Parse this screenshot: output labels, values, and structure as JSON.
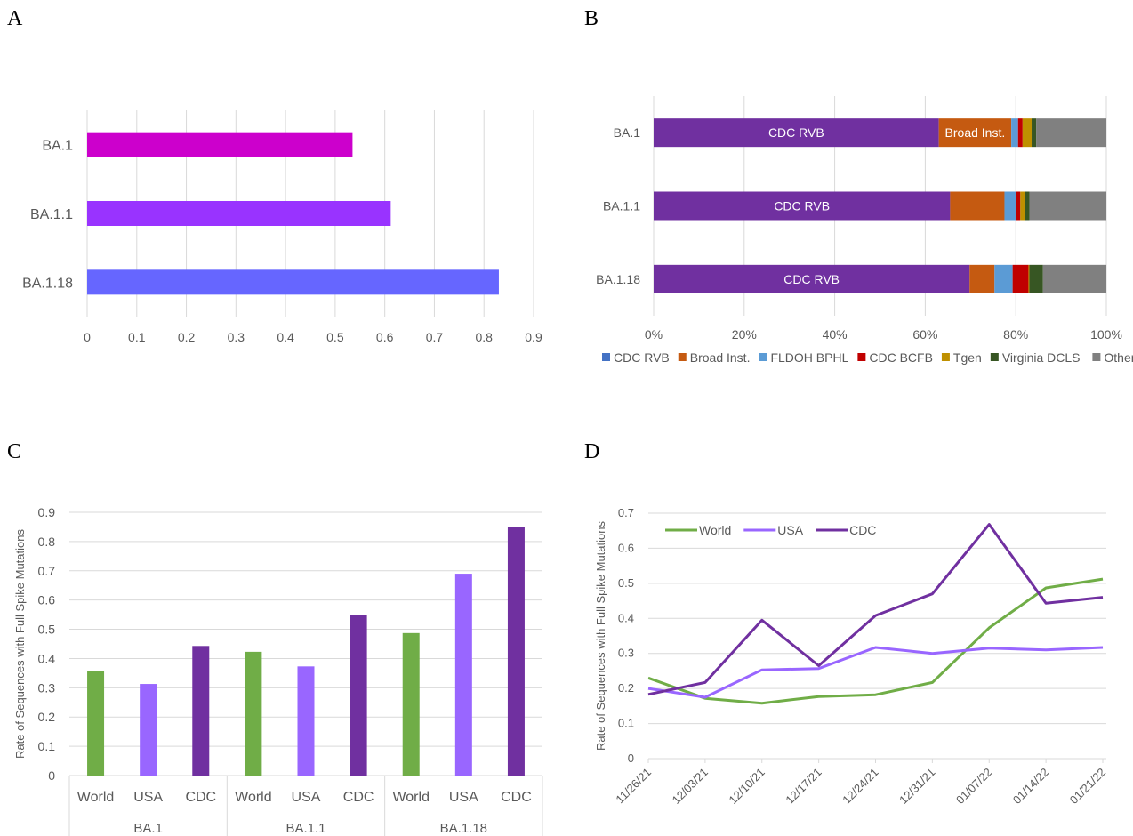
{
  "panel_labels": [
    "A",
    "B",
    "C",
    "D"
  ],
  "chart_data": [
    {
      "panel": "A",
      "type": "bar",
      "orientation": "horizontal",
      "categories": [
        "BA.1",
        "BA.1.1",
        "BA.1.18"
      ],
      "values": [
        0.535,
        0.612,
        0.83
      ],
      "colors": [
        "#cc00cc",
        "#9933ff",
        "#6666ff"
      ],
      "xlim": [
        0,
        0.9
      ],
      "xticks": [
        "0",
        "0.1",
        "0.2",
        "0.3",
        "0.4",
        "0.5",
        "0.6",
        "0.7",
        "0.8",
        "0.9"
      ],
      "grid": true
    },
    {
      "panel": "B",
      "type": "bar",
      "stacked": "percent",
      "orientation": "horizontal",
      "categories": [
        "BA.1",
        "BA.1.1",
        "BA.1.18"
      ],
      "series": [
        {
          "name": "CDC RVB",
          "color": "#7030a0",
          "legend_color": "#4472c4",
          "values": [
            63,
            65.5,
            69.8
          ]
        },
        {
          "name": "Broad Inst.",
          "color": "#c55a11",
          "values": [
            16,
            12,
            5.5
          ]
        },
        {
          "name": "FLDOH BPHL",
          "color": "#5b9bd5",
          "values": [
            1.5,
            2.5,
            4
          ]
        },
        {
          "name": "CDC BCFB",
          "color": "#c00000",
          "values": [
            1,
            1,
            3.5
          ]
        },
        {
          "name": "Tgen",
          "color": "#bf9000",
          "values": [
            2,
            1,
            0.2
          ]
        },
        {
          "name": "Virginia  DCLS",
          "color": "#375623",
          "values": [
            1,
            1,
            3
          ]
        },
        {
          "name": "Others",
          "color": "#808080",
          "values": [
            15.5,
            17,
            14
          ]
        }
      ],
      "bar_labels": [
        {
          "category": "BA.1",
          "series": "CDC RVB",
          "text": "CDC RVB"
        },
        {
          "category": "BA.1",
          "series": "Broad Inst.",
          "text": "Broad Inst."
        },
        {
          "category": "BA.1.1",
          "series": "CDC RVB",
          "text": "CDC RVB"
        },
        {
          "category": "BA.1.18",
          "series": "CDC RVB",
          "text": "CDC RVB"
        }
      ],
      "xticks": [
        "0%",
        "20%",
        "40%",
        "60%",
        "80%",
        "100%"
      ],
      "legend_position": "bottom",
      "grid": true
    },
    {
      "panel": "C",
      "type": "bar",
      "groups": [
        "BA.1",
        "BA.1.1",
        "BA.1.18"
      ],
      "subcategories": [
        "World",
        "USA",
        "CDC"
      ],
      "series": [
        {
          "name": "World",
          "color": "#70ad47",
          "values": [
            0.357,
            0.423,
            0.487
          ]
        },
        {
          "name": "USA",
          "color": "#9966ff",
          "values": [
            0.313,
            0.373,
            0.69
          ]
        },
        {
          "name": "CDC",
          "color": "#7030a0",
          "values": [
            0.443,
            0.548,
            0.85
          ]
        }
      ],
      "ylabel": "Rate of Sequences with Full Spike Mutations",
      "ylim": [
        0,
        0.9
      ],
      "yticks": [
        "0",
        "0.1",
        "0.2",
        "0.3",
        "0.4",
        "0.5",
        "0.6",
        "0.7",
        "0.8",
        "0.9"
      ],
      "grid": true
    },
    {
      "panel": "D",
      "type": "line",
      "x": [
        "11/26/21",
        "12/03/21",
        "12/10/21",
        "12/17/21",
        "12/24/21",
        "12/31/21",
        "01/07/22",
        "01/14/22",
        "01/21/22"
      ],
      "series": [
        {
          "name": "World",
          "color": "#70ad47",
          "values": [
            0.23,
            0.172,
            0.158,
            0.177,
            0.182,
            0.217,
            0.373,
            0.487,
            0.512
          ]
        },
        {
          "name": "USA",
          "color": "#9966ff",
          "values": [
            0.2,
            0.175,
            0.253,
            0.257,
            0.317,
            0.3,
            0.315,
            0.31,
            0.317
          ]
        },
        {
          "name": "CDC",
          "color": "#7030a0",
          "values": [
            0.183,
            0.217,
            0.395,
            0.265,
            0.408,
            0.47,
            0.668,
            0.443,
            0.46
          ]
        }
      ],
      "ylabel": "Rate of Sequences with Full Spike Mutations",
      "ylim": [
        0,
        0.7
      ],
      "yticks": [
        "0",
        "0.1",
        "0.2",
        "0.3",
        "0.4",
        "0.5",
        "0.6",
        "0.7"
      ],
      "legend_position": "top-left",
      "grid": true
    }
  ]
}
